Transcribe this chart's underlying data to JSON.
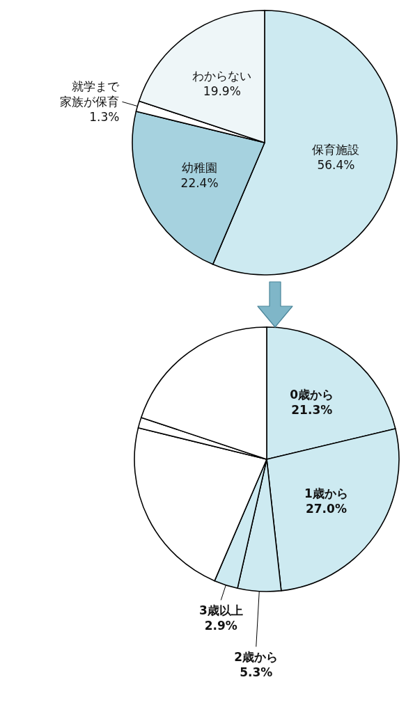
{
  "chart_data": [
    {
      "type": "pie",
      "categories": [
        "保育施設",
        "幼稚園",
        "就学まで家族が保育",
        "わからない"
      ],
      "values": [
        56.4,
        22.4,
        1.3,
        19.9
      ],
      "colors": [
        "#cdeaf1",
        "#a6d2df",
        "#ffffff",
        "#eef6f8"
      ],
      "value_labels": [
        "56.4%",
        "22.4%",
        "1.3%",
        "19.9%"
      ]
    },
    {
      "type": "pie",
      "categories": [
        "0歳から",
        "1歳から",
        "2歳から",
        "3歳以上",
        null,
        null,
        null
      ],
      "values": [
        21.3,
        27.0,
        5.3,
        2.9,
        22.4,
        1.3,
        19.9
      ],
      "colors": [
        "#cdeaf1",
        "#cdeaf1",
        "#cdeaf1",
        "#cdeaf1",
        "#ffffff",
        "#ffffff",
        "#ffffff"
      ],
      "value_labels": [
        "21.3%",
        "27.0%",
        "5.3%",
        "2.9%",
        null,
        null,
        null
      ]
    }
  ]
}
